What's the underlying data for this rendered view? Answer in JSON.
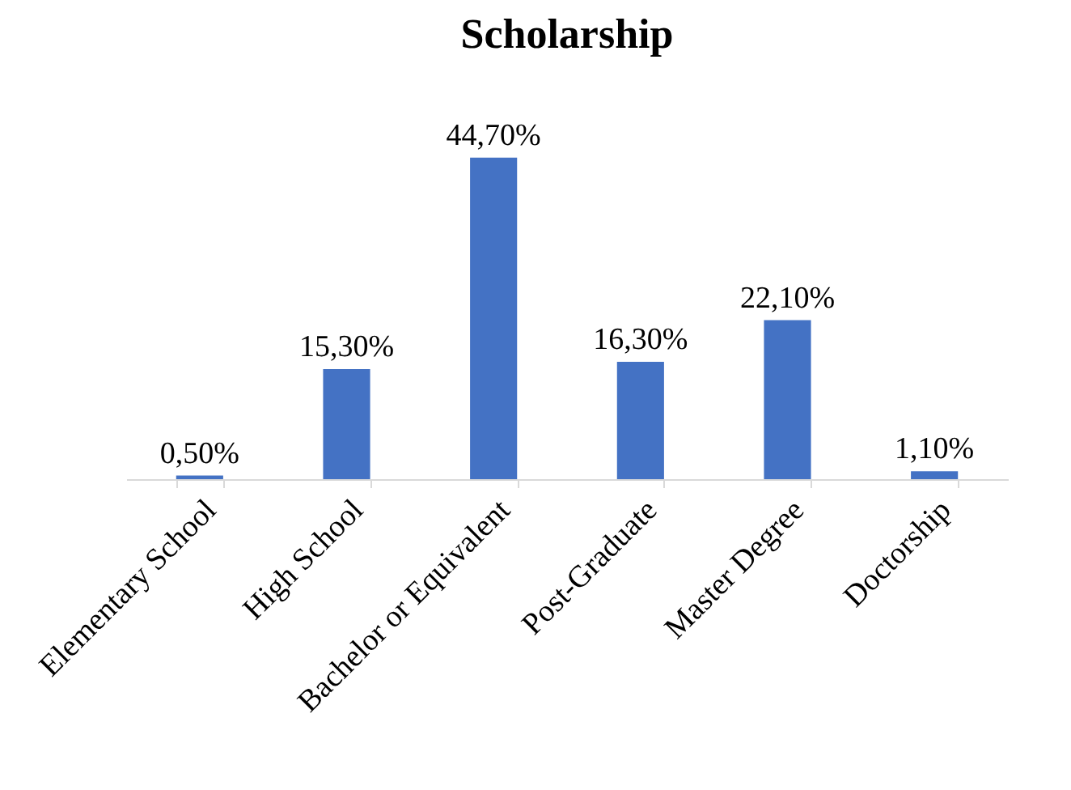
{
  "chart_data": {
    "type": "bar",
    "title": "Scholarship",
    "categories": [
      "Elementary School",
      "High School",
      "Bachelor or Equivalent",
      "Post-Graduate",
      "Master Degree",
      "Doctorship"
    ],
    "values": [
      0.5,
      15.3,
      44.7,
      16.3,
      22.1,
      1.1
    ],
    "value_labels": [
      "0,50%",
      "15,30%",
      "44,70%",
      "16,30%",
      "22,10%",
      "1,10%"
    ],
    "color": "#4472c4"
  }
}
